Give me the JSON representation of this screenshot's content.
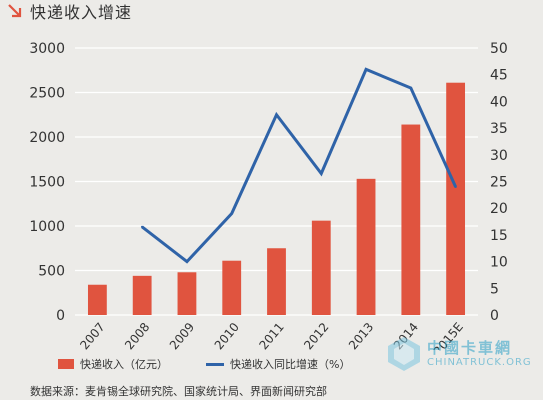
{
  "title": "快递收入增速",
  "legend": {
    "bar_label": "快递收入（亿元）",
    "line_label": "快递收入同比增速（%）"
  },
  "source": "数据来源：麦肯锡全球研究院、国家统计局、界面新闻研究部",
  "watermark": {
    "cn": "中國卡車網",
    "en": "CHINATRUCK.ORG"
  },
  "colors": {
    "bar": "#e0543f",
    "line": "#2f63a8",
    "grid": "#ffffff",
    "text": "#333333"
  },
  "chart_data": {
    "type": "bar",
    "categories": [
      "2007",
      "2008",
      "2009",
      "2010",
      "2011",
      "2012",
      "2013",
      "2014",
      "2015E"
    ],
    "series": [
      {
        "name": "快递收入（亿元）",
        "type": "bar",
        "axis": "left",
        "values": [
          340,
          440,
          480,
          610,
          750,
          1060,
          1530,
          2140,
          2610
        ]
      },
      {
        "name": "快递收入同比增速（%）",
        "type": "line",
        "axis": "right",
        "values": [
          null,
          16.5,
          10,
          19,
          37.5,
          26.5,
          46,
          42.5,
          24
        ]
      }
    ],
    "ylim": [
      0,
      3000
    ],
    "yticks": [
      0,
      500,
      1000,
      1500,
      2000,
      2500,
      3000
    ],
    "y2lim": [
      0,
      50
    ],
    "y2ticks": [
      0,
      5,
      10,
      15,
      20,
      25,
      30,
      35,
      40,
      45,
      50
    ],
    "grid": true,
    "legend_position": "bottom"
  }
}
